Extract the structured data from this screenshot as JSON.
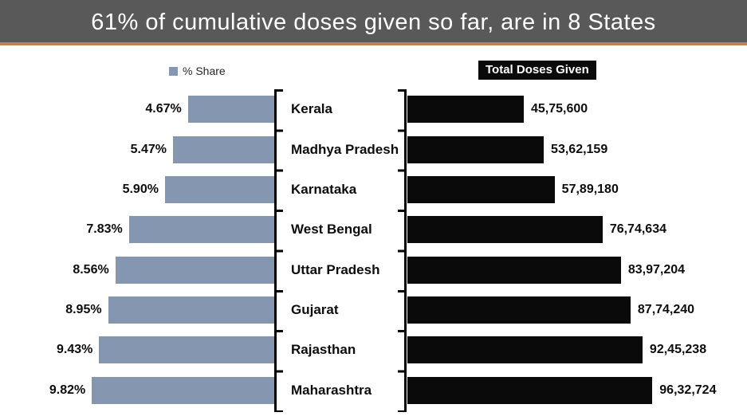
{
  "header": {
    "title": "61% of cumulative doses given so far, are in 8 States"
  },
  "legend": {
    "share_label": "% Share",
    "doses_label": "Total Doses Given"
  },
  "colors": {
    "header_bg": "#595959",
    "header_accent": "#C0824F",
    "share_bar": "#8496B0",
    "doses_bar": "#0A0A0A"
  },
  "chart_data": {
    "type": "bar",
    "orientation": "horizontal",
    "layout": "tornado",
    "title": "61% of cumulative doses given so far, are in 8 States",
    "grid": false,
    "legend_position": "top",
    "categories": [
      "Kerala",
      "Madhya Pradesh",
      "Karnataka",
      "West Bengal",
      "Uttar Pradesh",
      "Gujarat",
      "Rajasthan",
      "Maharashtra"
    ],
    "series": [
      {
        "name": "% Share",
        "side": "left",
        "color": "#8496B0",
        "axis_max": 10,
        "values": [
          4.67,
          5.47,
          5.9,
          7.83,
          8.56,
          8.95,
          9.43,
          9.82
        ],
        "labels": [
          "4.67%",
          "5.47%",
          "5.90%",
          "7.83%",
          "8.56%",
          "8.95%",
          "9.43%",
          "9.82%"
        ]
      },
      {
        "name": "Total Doses Given",
        "side": "right",
        "color": "#0A0A0A",
        "axis_max": 10000000,
        "values": [
          4575600,
          5362159,
          5789180,
          7674634,
          8397204,
          8774240,
          9245238,
          9632724
        ],
        "labels": [
          "45,75,600",
          "53,62,159",
          "57,89,180",
          "76,74,634",
          "83,97,204",
          "87,74,240",
          "92,45,238",
          "96,32,724"
        ]
      }
    ]
  }
}
